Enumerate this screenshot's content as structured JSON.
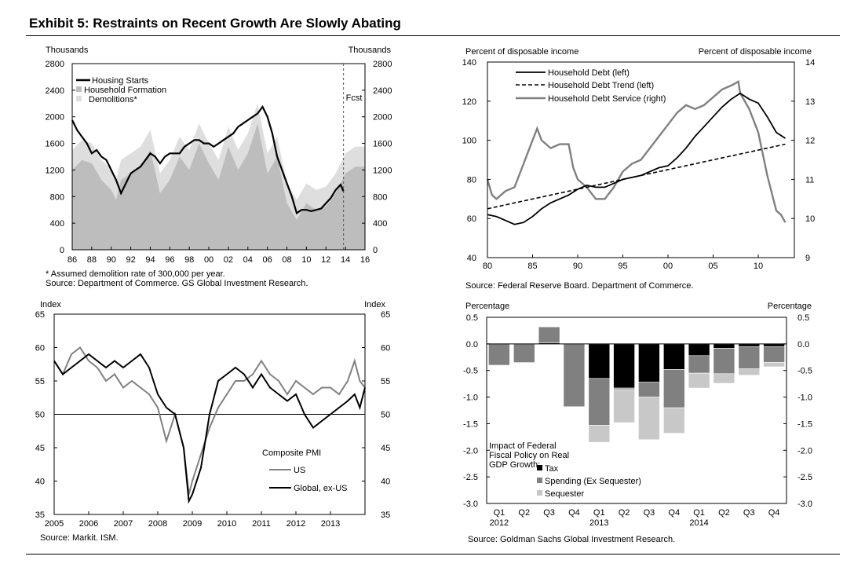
{
  "title": "Exhibit 5: Restraints on Recent Growth Are Slowly Abating",
  "chart_data": [
    {
      "type": "area",
      "id": "housing",
      "ylabel_left": "Thousands",
      "ylabel_right": "Thousands",
      "ylim": [
        0,
        2800
      ],
      "yticks": [
        0,
        400,
        800,
        1200,
        1600,
        2000,
        2400,
        2800
      ],
      "xlim": [
        1986,
        2016
      ],
      "xticks": [
        1986,
        1988,
        1990,
        1992,
        1994,
        1996,
        1998,
        2000,
        2002,
        2004,
        2006,
        2008,
        2010,
        2012,
        2014,
        2016
      ],
      "xtick_labels": [
        "86",
        "88",
        "90",
        "92",
        "94",
        "96",
        "98",
        "00",
        "02",
        "04",
        "06",
        "08",
        "10",
        "12",
        "14",
        "16"
      ],
      "forecast_start": 2013.8,
      "forecast_label": "Fcst",
      "legend": [
        "Housing Starts",
        "Household Formation",
        "Demolitions*"
      ],
      "series": [
        {
          "name": "Household Formation",
          "style": "area",
          "color": "#bdbdbd",
          "x": [
            1986,
            1987,
            1988,
            1989,
            1990,
            1990.5,
            1991,
            1992,
            1993,
            1994,
            1995,
            1996,
            1997,
            1998,
            1999,
            2000,
            2001,
            2002,
            2003,
            2004,
            2005,
            2006,
            2007,
            2008,
            2009,
            2010,
            2011,
            2012,
            2013,
            2014,
            2015,
            2016
          ],
          "y": [
            1200,
            1350,
            1300,
            1050,
            900,
            750,
            1050,
            1150,
            1250,
            1500,
            850,
            1050,
            1400,
            1200,
            1600,
            1300,
            1050,
            1550,
            1200,
            1450,
            1900,
            1150,
            1400,
            700,
            450,
            700,
            600,
            650,
            850,
            1150,
            1250,
            1250
          ]
        },
        {
          "name": "Demolitions*",
          "style": "band",
          "color": "#dedede",
          "x": [
            1986,
            1987,
            1988,
            1989,
            1990,
            1990.5,
            1991,
            1992,
            1993,
            1994,
            1995,
            1996,
            1997,
            1998,
            1999,
            2000,
            2001,
            2002,
            2003,
            2004,
            2005,
            2006,
            2007,
            2008,
            2009,
            2010,
            2011,
            2012,
            2013,
            2014,
            2015,
            2016
          ],
          "y": [
            1500,
            1650,
            1600,
            1350,
            1200,
            1050,
            1350,
            1450,
            1550,
            1800,
            1150,
            1350,
            1700,
            1500,
            1900,
            1600,
            1350,
            1850,
            1500,
            1750,
            2200,
            1450,
            1700,
            1000,
            750,
            1000,
            900,
            950,
            1150,
            1450,
            1550,
            1550
          ]
        },
        {
          "name": "Housing Starts",
          "style": "line",
          "color": "#000000",
          "x": [
            1986,
            1986.5,
            1987,
            1987.5,
            1988,
            1988.5,
            1989,
            1989.5,
            1990,
            1990.5,
            1991,
            1991.5,
            1992,
            1992.5,
            1993,
            1993.5,
            1994,
            1994.5,
            1995,
            1995.5,
            1996,
            1996.5,
            1997,
            1997.5,
            1998,
            1998.5,
            1999,
            1999.5,
            2000,
            2000.5,
            2001,
            2001.5,
            2002,
            2002.5,
            2003,
            2003.5,
            2004,
            2004.5,
            2005,
            2005.5,
            2006,
            2006.5,
            2007,
            2007.5,
            2008,
            2008.5,
            2009,
            2009.5,
            2010,
            2010.5,
            2011,
            2011.5,
            2012,
            2012.5,
            2013,
            2013.5,
            2013.8
          ],
          "y": [
            1950,
            1800,
            1700,
            1600,
            1450,
            1500,
            1400,
            1350,
            1200,
            1050,
            850,
            1000,
            1150,
            1200,
            1250,
            1350,
            1450,
            1400,
            1300,
            1400,
            1450,
            1450,
            1450,
            1550,
            1600,
            1650,
            1650,
            1600,
            1600,
            1550,
            1600,
            1650,
            1700,
            1750,
            1850,
            1900,
            1950,
            2000,
            2050,
            2150,
            2000,
            1750,
            1400,
            1200,
            1000,
            800,
            550,
            600,
            600,
            580,
            600,
            620,
            700,
            780,
            900,
            980,
            880
          ]
        }
      ],
      "footnote": "* Assumed demolition rate of 300,000 per year.",
      "source": "Source: Department of Commerce. GS Global Investment Research."
    },
    {
      "type": "line",
      "id": "debt",
      "ylabel_left": "Percent of disposable income",
      "ylabel_right": "Percent of disposable income",
      "ylim_left": [
        40,
        140
      ],
      "yticks_left": [
        40,
        60,
        80,
        100,
        120,
        140
      ],
      "ylim_right": [
        9,
        14
      ],
      "yticks_right": [
        9,
        10,
        11,
        12,
        13,
        14
      ],
      "xlim": [
        1980,
        2014
      ],
      "xticks": [
        1980,
        1985,
        1990,
        1995,
        2000,
        2005,
        2010
      ],
      "xtick_labels": [
        "80",
        "85",
        "90",
        "95",
        "00",
        "05",
        "10"
      ],
      "legend": [
        "Household Debt (left)",
        "Household Debt Trend (left)",
        "Household Debt Service (right)"
      ],
      "series": [
        {
          "name": "Household Debt (left)",
          "axis": "left",
          "style": "solid",
          "color": "#000000",
          "x": [
            1980,
            1981,
            1982,
            1983,
            1984,
            1985,
            1986,
            1987,
            1988,
            1989,
            1990,
            1991,
            1992,
            1993,
            1994,
            1995,
            1996,
            1997,
            1998,
            1999,
            2000,
            2001,
            2002,
            2003,
            2004,
            2005,
            2006,
            2007,
            2008,
            2009,
            2010,
            2011,
            2012,
            2013
          ],
          "y": [
            62,
            61,
            59,
            57,
            58,
            61,
            65,
            68,
            70,
            72,
            75,
            77,
            76,
            76,
            78,
            80,
            81,
            82,
            84,
            86,
            87,
            91,
            96,
            102,
            107,
            112,
            117,
            121,
            124,
            121,
            119,
            112,
            104,
            101
          ]
        },
        {
          "name": "Household Debt Trend (left)",
          "axis": "left",
          "style": "dashed",
          "color": "#000000",
          "x": [
            1980,
            2013
          ],
          "y": [
            65,
            98
          ]
        },
        {
          "name": "Household Debt Service (right)",
          "axis": "right",
          "style": "solid",
          "color": "#808080",
          "x": [
            1980,
            1980.5,
            1981,
            1982,
            1983,
            1984,
            1985,
            1985.5,
            1986,
            1987,
            1988,
            1989,
            1989.5,
            1990,
            1991,
            1992,
            1993,
            1994,
            1995,
            1996,
            1997,
            1998,
            1999,
            2000,
            2001,
            2002,
            2003,
            2004,
            2005,
            2006,
            2007,
            2007.8,
            2008,
            2009,
            2010,
            2011,
            2012,
            2012.5,
            2013
          ],
          "y": [
            11.0,
            10.6,
            10.5,
            10.7,
            10.8,
            11.4,
            12.0,
            12.3,
            12.0,
            11.8,
            11.9,
            11.9,
            11.3,
            11.0,
            10.8,
            10.5,
            10.5,
            10.8,
            11.2,
            11.4,
            11.5,
            11.8,
            12.1,
            12.4,
            12.7,
            12.9,
            12.8,
            12.9,
            13.1,
            13.3,
            13.4,
            13.5,
            13.2,
            12.8,
            12.2,
            11.1,
            10.2,
            10.1,
            9.9
          ]
        }
      ],
      "source": "Source: Federal Reserve Board. Department of Commerce."
    },
    {
      "type": "line",
      "id": "pmi",
      "ylabel_left": "Index",
      "ylabel_right": "Index",
      "ylim": [
        35,
        65
      ],
      "yticks": [
        35,
        40,
        45,
        50,
        55,
        60,
        65
      ],
      "xlim": [
        2005,
        2014
      ],
      "xticks": [
        2005,
        2006,
        2007,
        2008,
        2009,
        2010,
        2011,
        2012,
        2013
      ],
      "xtick_labels": [
        "2005",
        "2006",
        "2007",
        "2008",
        "2009",
        "2010",
        "2011",
        "2012",
        "2013"
      ],
      "reference_line": 50,
      "legend_title": "Composite PMI",
      "legend": [
        "US",
        "Global, ex-US"
      ],
      "series": [
        {
          "name": "US",
          "color": "#808080",
          "x": [
            2005,
            2005.25,
            2005.5,
            2005.75,
            2006,
            2006.25,
            2006.5,
            2006.75,
            2007,
            2007.25,
            2007.5,
            2007.75,
            2008,
            2008.25,
            2008.5,
            2008.75,
            2008.9,
            2009,
            2009.25,
            2009.5,
            2009.75,
            2010,
            2010.25,
            2010.5,
            2010.75,
            2011,
            2011.25,
            2011.5,
            2011.75,
            2012,
            2012.25,
            2012.5,
            2012.75,
            2013,
            2013.25,
            2013.5,
            2013.7,
            2013.85,
            2014
          ],
          "y": [
            58,
            56,
            59,
            60,
            58,
            57,
            55,
            56,
            54,
            55,
            54,
            53,
            51,
            46,
            50,
            45,
            38,
            40,
            44,
            48,
            51,
            53,
            55,
            55,
            56,
            58,
            56,
            55,
            53,
            55,
            54,
            53,
            54,
            54,
            53,
            55,
            58,
            55,
            54
          ]
        },
        {
          "name": "Global, ex-US",
          "color": "#000000",
          "x": [
            2005,
            2005.25,
            2005.5,
            2005.75,
            2006,
            2006.25,
            2006.5,
            2006.75,
            2007,
            2007.25,
            2007.5,
            2007.75,
            2008,
            2008.25,
            2008.5,
            2008.75,
            2008.9,
            2009,
            2009.25,
            2009.5,
            2009.75,
            2010,
            2010.25,
            2010.5,
            2010.75,
            2011,
            2011.25,
            2011.5,
            2011.75,
            2012,
            2012.25,
            2012.5,
            2012.75,
            2013,
            2013.25,
            2013.5,
            2013.7,
            2013.85,
            2014
          ],
          "y": [
            58,
            56,
            57,
            58,
            59,
            58,
            57,
            58,
            57,
            58,
            59,
            57,
            53,
            51,
            50,
            45,
            37,
            38,
            42,
            50,
            55,
            56,
            57,
            56,
            54,
            56,
            54,
            53,
            52,
            53,
            50,
            48,
            49,
            50,
            51,
            52,
            53,
            51,
            54
          ]
        }
      ],
      "source": "Source: Markit. ISM."
    },
    {
      "type": "bar",
      "id": "fiscal",
      "stacked": true,
      "ylabel_left": "Percentage",
      "ylabel_right": "Percentage",
      "ylim": [
        -3.0,
        0.5
      ],
      "yticks": [
        -3.0,
        -2.5,
        -2.0,
        -1.5,
        -1.0,
        -0.5,
        0.0,
        0.5
      ],
      "ytick_labels": [
        "-3.0",
        "-2.5",
        "-2.0",
        "-1.5",
        "-1.0",
        "-0.5",
        "0.0",
        "0.5"
      ],
      "categories": [
        "Q1",
        "Q2",
        "Q3",
        "Q4",
        "Q1",
        "Q2",
        "Q3",
        "Q4",
        "Q1",
        "Q2",
        "Q3",
        "Q4"
      ],
      "year_labels": [
        {
          "index": 0,
          "label": "2012"
        },
        {
          "index": 4,
          "label": "2013"
        },
        {
          "index": 8,
          "label": "2014"
        }
      ],
      "legend_title": "Impact of Federal Fiscal Policy on Real GDP Growth:",
      "legend": [
        "Tax",
        "Spending (Ex Sequester)",
        "Sequester"
      ],
      "series": [
        {
          "name": "Tax",
          "color": "#000000",
          "values": [
            0,
            0,
            0.02,
            0,
            -0.65,
            -0.83,
            -0.72,
            -0.48,
            -0.22,
            -0.08,
            -0.05,
            -0.05
          ]
        },
        {
          "name": "Spending (Ex Sequester)",
          "color": "#808080",
          "values": [
            -0.4,
            -0.35,
            0.3,
            -1.18,
            -0.88,
            -0.03,
            -0.28,
            -0.72,
            -0.33,
            -0.48,
            -0.42,
            -0.3
          ]
        },
        {
          "name": "Sequester",
          "color": "#c8c8c8",
          "values": [
            0,
            0,
            0,
            0,
            -0.32,
            -0.62,
            -0.8,
            -0.48,
            -0.28,
            -0.18,
            -0.12,
            -0.08
          ]
        }
      ],
      "source": "Source: Goldman Sachs Global Investment Research."
    }
  ]
}
